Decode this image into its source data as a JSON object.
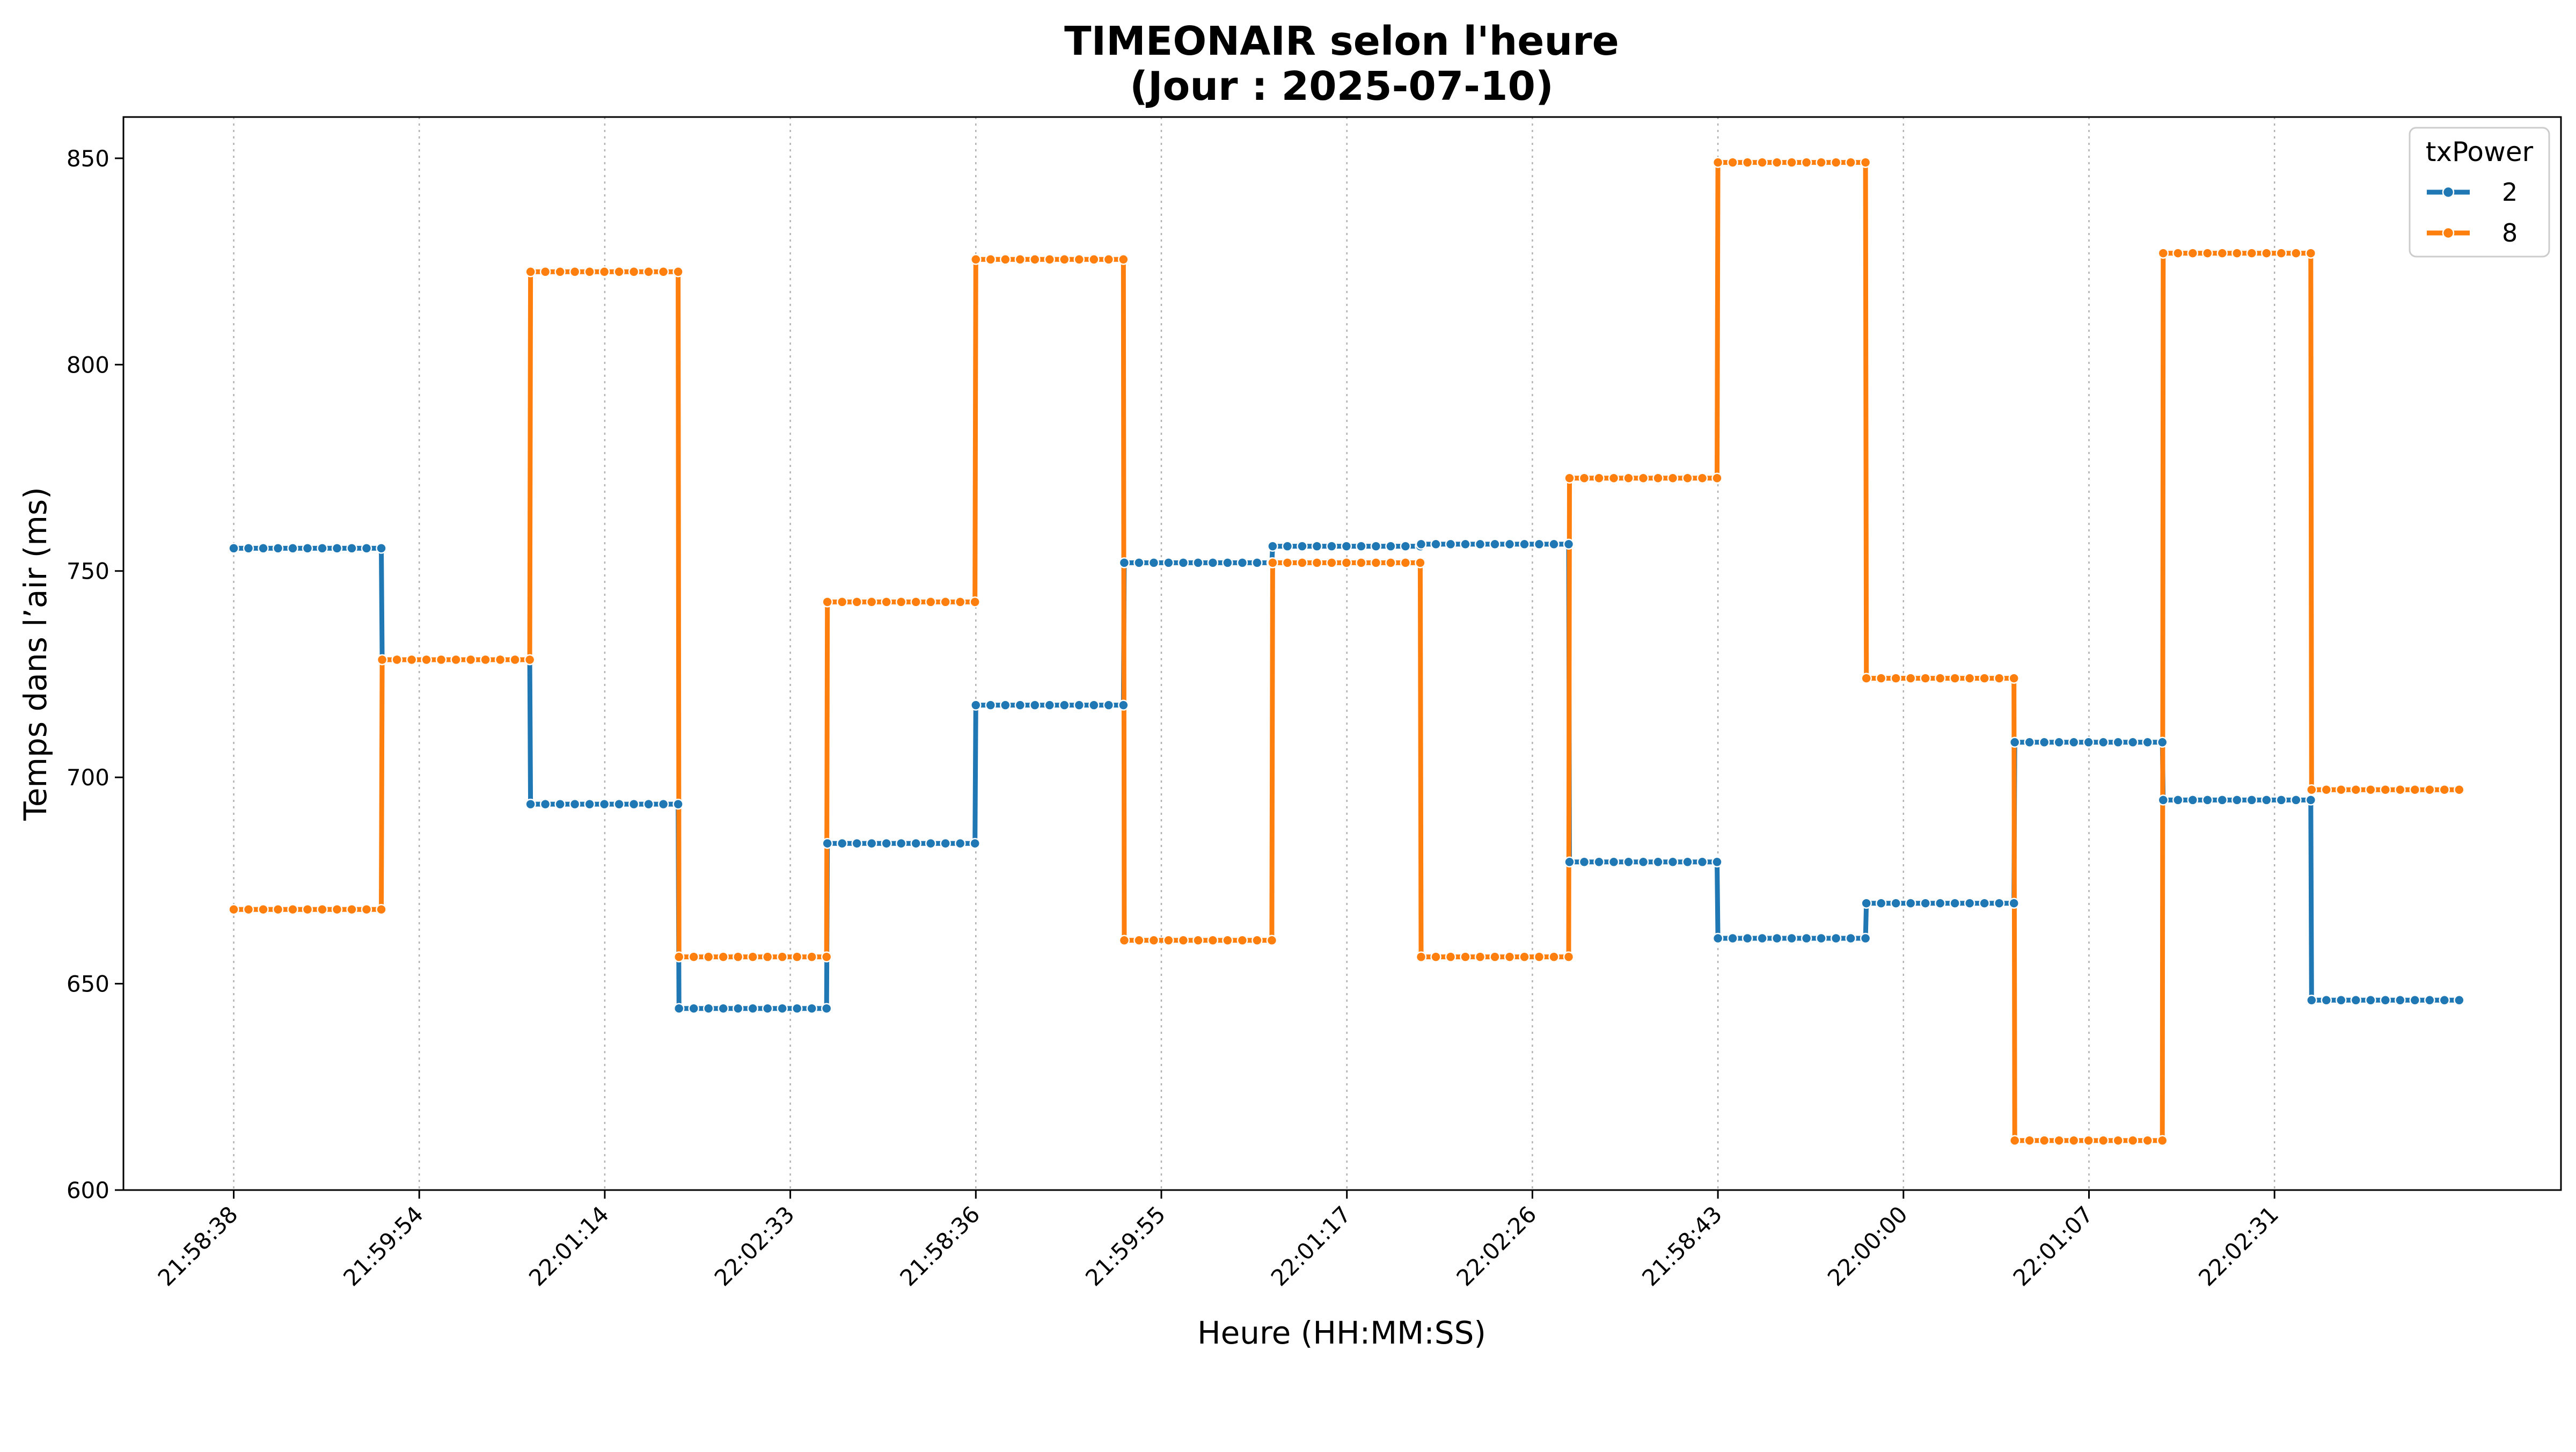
{
  "chart_data": {
    "type": "line",
    "title": "TIMEONAIR selon l'heure",
    "subtitle": "(Jour : 2025-07-10)",
    "xlabel": "Heure (HH:MM:SS)",
    "ylabel": "Temps dans l’air (ms)",
    "ylim": [
      600,
      860
    ],
    "yticks": [
      600,
      650,
      700,
      750,
      800,
      850
    ],
    "xticks": [
      "21:58:38",
      "21:59:54",
      "22:01:14",
      "22:02:33",
      "21:58:36",
      "21:59:55",
      "22:01:17",
      "22:02:26",
      "21:58:43",
      "22:00:00",
      "22:01:07",
      "22:02:31"
    ],
    "points_per_segment": 11,
    "grid": "x-dotted",
    "legend": {
      "title": "txPower",
      "placement": "top-right"
    },
    "series": [
      {
        "name": "2",
        "color": "#1f77b4",
        "segment_values": [
          755.5,
          728.5,
          693.5,
          644,
          684,
          717.5,
          752,
          756,
          756.5,
          679.5,
          661,
          669.5,
          708.5,
          694.5,
          646
        ]
      },
      {
        "name": "8",
        "color": "#ff7f0e",
        "segment_values": [
          668,
          728.5,
          822.5,
          656.5,
          742.5,
          825.5,
          660.5,
          752,
          656.5,
          772.5,
          849,
          724,
          612,
          827,
          697
        ]
      }
    ]
  }
}
